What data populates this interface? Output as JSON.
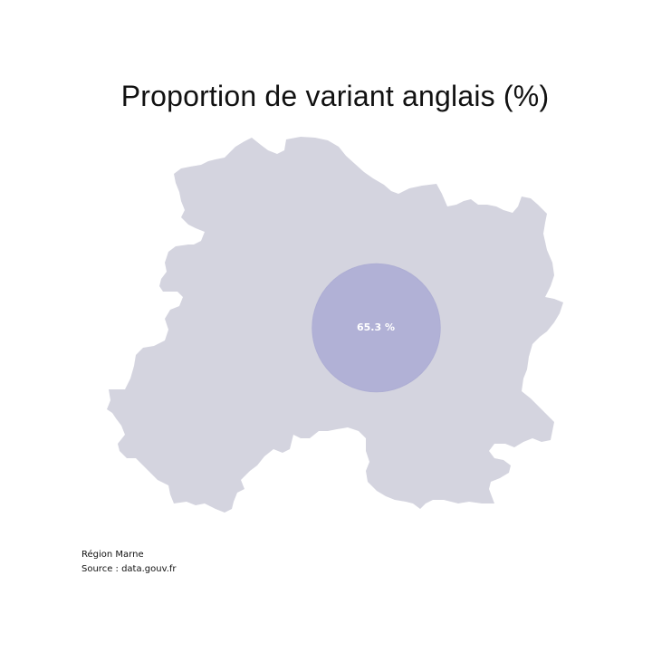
{
  "title": "Proportion de variant anglais (%)",
  "region": {
    "fill_color": "#d4d4df"
  },
  "bubble": {
    "value": 65.3,
    "label": "65.3 %",
    "fill_color": "#b1b1d6",
    "label_color": "#ffffff"
  },
  "footer": {
    "region_line": "Région Marne",
    "source_line": "Source : data.gouv.fr"
  }
}
